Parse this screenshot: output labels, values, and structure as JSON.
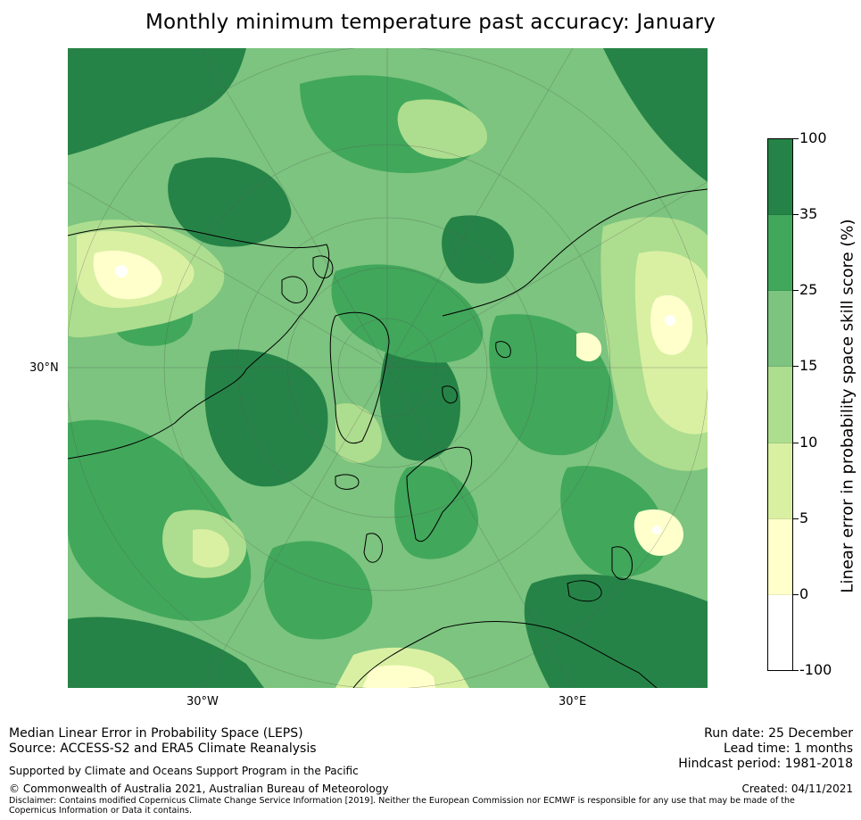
{
  "title": "Monthly minimum temperature past accuracy: January",
  "map": {
    "projection": "North Polar Stereographic",
    "lat_labels": [
      "30°N"
    ],
    "lon_labels": [
      "30°W",
      "30°E"
    ]
  },
  "colorbar": {
    "label": "Linear error in probability space skill score (%)",
    "ticks": [
      "100",
      "35",
      "25",
      "15",
      "10",
      "5",
      "0",
      "-100"
    ],
    "bins": [
      {
        "range": "35 to 100",
        "color": "#268347"
      },
      {
        "range": "25 to 35",
        "color": "#41a75b"
      },
      {
        "range": "15 to 25",
        "color": "#7cc47f"
      },
      {
        "range": "10 to 15",
        "color": "#addd8e"
      },
      {
        "range": "5 to 10",
        "color": "#d9f0a3"
      },
      {
        "range": "0 to 5",
        "color": "#ffffcc"
      },
      {
        "range": "-100 to 0",
        "color": "#ffffff"
      }
    ]
  },
  "footer": {
    "left_line1": "Median Linear Error in Probability Space (LEPS)",
    "left_line2": "Source: ACCESS-S2 and ERA5 Climate Reanalysis",
    "right_line1": "Run date: 25 December",
    "right_line2": "Lead time: 1 months",
    "right_line3": "Hindcast period: 1981-2018",
    "support": "Supported by Climate and Oceans Support Program in the Pacific",
    "copyright": "© Commonwealth of Australia 2021, Australian Bureau of Meteorology",
    "created": "Created: 04/11/2021",
    "disclaimer": "Disclaimer: Contains modified Copernicus Climate Change Service Information [2019]. Neither the European Commission nor ECMWF is responsible for any use that may be made of the Copernicus Information or Data it contains."
  }
}
